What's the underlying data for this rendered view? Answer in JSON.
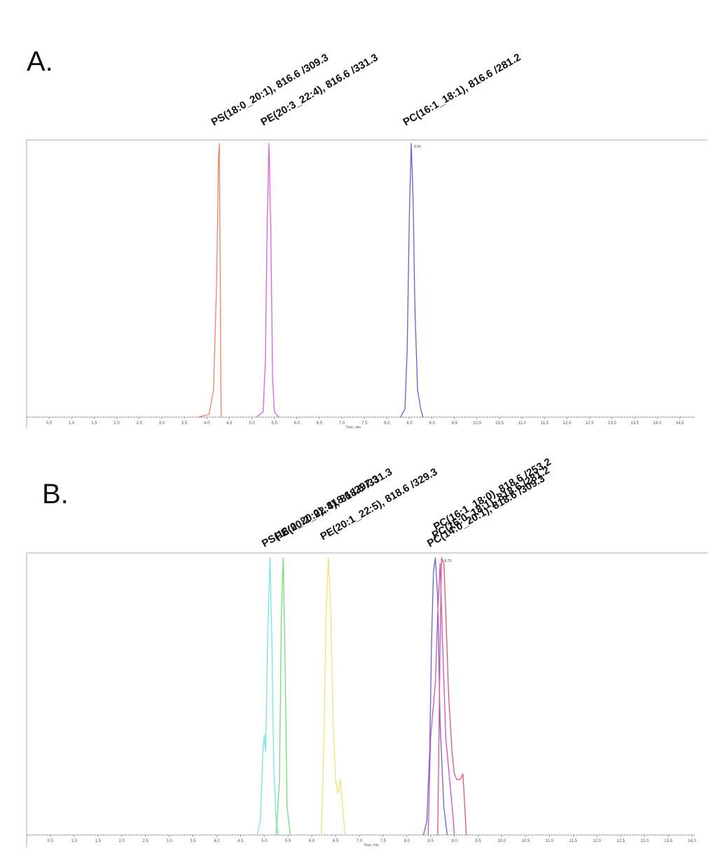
{
  "panels": [
    {
      "letter": "A.",
      "xlabel": "Time, min",
      "xticks": [
        "0.5",
        "1.0",
        "1.5",
        "2.0",
        "2.5",
        "3.0",
        "3.5",
        "4.0",
        "4.5",
        "5.0",
        "5.5",
        "6.0",
        "6.5",
        "7.0",
        "7.5",
        "8.0",
        "8.5",
        "9.0",
        "9.5",
        "10.0",
        "10.5",
        "11.0",
        "11.5",
        "12.0",
        "12.5",
        "13.0",
        "13.5",
        "14.0",
        "14.5"
      ],
      "apex_label": "8.54"
    },
    {
      "letter": "B.",
      "xlabel": "Time, min",
      "xticks": [
        "0.5",
        "1.0",
        "1.5",
        "2.0",
        "2.5",
        "3.0",
        "3.5",
        "4.0",
        "4.5",
        "5.0",
        "5.5",
        "6.0",
        "6.5",
        "7.0",
        "7.5",
        "8.0",
        "8.5",
        "9.0",
        "9.5",
        "10.0",
        "10.5",
        "11.0",
        "11.5",
        "12.0",
        "12.5",
        "13.0",
        "13.5",
        "14.0"
      ],
      "apex_label": "8.73"
    }
  ],
  "chart_data": [
    {
      "type": "line",
      "title": "A.",
      "xlabel": "Time, min",
      "ylabel": "",
      "xlim": [
        0,
        15.0
      ],
      "ylim": [
        0,
        1
      ],
      "grid": false,
      "series": [
        {
          "name": "PS(18:0_20:1), 816.6 /309.3",
          "color": "#f4845f",
          "rt": 4.28,
          "values": {
            "x": [
              3.8,
              4.05,
              4.15,
              4.22,
              4.26,
              4.28,
              4.31,
              4.32
            ],
            "y": [
              0,
              0.01,
              0.1,
              0.5,
              0.95,
              1.0,
              0.2,
              0
            ]
          }
        },
        {
          "name": "PE(20:3_22:4), 816.6 /331.3",
          "color": "#e85de0",
          "rt": 5.38,
          "values": {
            "x": [
              5.1,
              5.25,
              5.3,
              5.34,
              5.38,
              5.42,
              5.46,
              5.5,
              5.6
            ],
            "y": [
              0,
              0.02,
              0.2,
              0.7,
              1.0,
              0.7,
              0.15,
              0.02,
              0
            ]
          }
        },
        {
          "name": "PC(16:1_18:1), 816.6 /281.2",
          "color": "#6060e8",
          "rt": 8.54,
          "values": {
            "x": [
              8.3,
              8.4,
              8.45,
              8.5,
              8.54,
              8.58,
              8.62,
              8.68,
              8.75,
              8.8
            ],
            "y": [
              0,
              0.03,
              0.25,
              0.75,
              1.0,
              0.8,
              0.4,
              0.1,
              0.03,
              0
            ]
          }
        }
      ]
    },
    {
      "type": "line",
      "title": "B.",
      "xlabel": "Time, min",
      "ylabel": "",
      "xlim": [
        0,
        14.0
      ],
      "ylim": [
        0,
        1
      ],
      "grid": false,
      "series": [
        {
          "name": "PS(18:0_20:0), 818.6 /297.3",
          "color": "#6ee8e8",
          "rt": 5.12,
          "values": {
            "x": [
              4.85,
              4.92,
              4.97,
              5.0,
              5.03,
              5.07,
              5.12,
              5.16,
              5.2,
              5.25,
              5.3
            ],
            "y": [
              0,
              0.05,
              0.3,
              0.36,
              0.3,
              0.7,
              1.0,
              0.7,
              0.25,
              0.05,
              0
            ]
          }
        },
        {
          "name": "PE(20:2_22:4), 818.6 /331.3",
          "color": "#70e070",
          "rt": 5.4,
          "values": {
            "x": [
              5.25,
              5.32,
              5.36,
              5.4,
              5.44,
              5.48,
              5.55
            ],
            "y": [
              0,
              0.2,
              0.8,
              1.0,
              0.6,
              0.1,
              0
            ]
          }
        },
        {
          "name": "PE(20:1_22:5), 818.6 /329.3",
          "color": "#f4e070",
          "rt": 6.35,
          "values": {
            "x": [
              6.2,
              6.25,
              6.3,
              6.35,
              6.4,
              6.45,
              6.5,
              6.55,
              6.6,
              6.65,
              6.7
            ],
            "y": [
              0,
              0.3,
              0.8,
              1.0,
              0.8,
              0.4,
              0.2,
              0.15,
              0.2,
              0.1,
              0
            ]
          }
        },
        {
          "name": "PC(14:0_20:1), 818.6 /309.3",
          "color": "#6060e8",
          "rt": 8.6,
          "values": {
            "x": [
              8.35,
              8.42,
              8.48,
              8.52,
              8.56,
              8.6,
              8.65,
              8.7,
              8.78,
              8.85
            ],
            "y": [
              0,
              0.05,
              0.3,
              0.7,
              0.95,
              1.0,
              0.85,
              0.4,
              0.1,
              0
            ]
          }
        },
        {
          "name": "PC(16:0_18:1), 818.6 /281.2",
          "color": "#d050d0",
          "rt": 8.7,
          "values": {
            "x": [
              8.45,
              8.5,
              8.55,
              8.6,
              8.65,
              8.7,
              8.75,
              8.82,
              8.9,
              8.98,
              9.0
            ],
            "y": [
              0,
              0.35,
              0.45,
              0.55,
              0.8,
              0.98,
              0.7,
              0.35,
              0.2,
              0.05,
              0
            ]
          }
        },
        {
          "name": "PC(16:1_18:0), 818.6 /253.2",
          "color": "#f05070",
          "rt": 8.73,
          "values": {
            "x": [
              8.65,
              8.7,
              8.73,
              8.78,
              8.82,
              8.88,
              8.95,
              9.0,
              9.05,
              9.12,
              9.18,
              9.22,
              9.25
            ],
            "y": [
              0,
              0.7,
              1.0,
              0.98,
              0.8,
              0.5,
              0.3,
              0.22,
              0.2,
              0.2,
              0.22,
              0.1,
              0
            ]
          }
        }
      ]
    }
  ]
}
